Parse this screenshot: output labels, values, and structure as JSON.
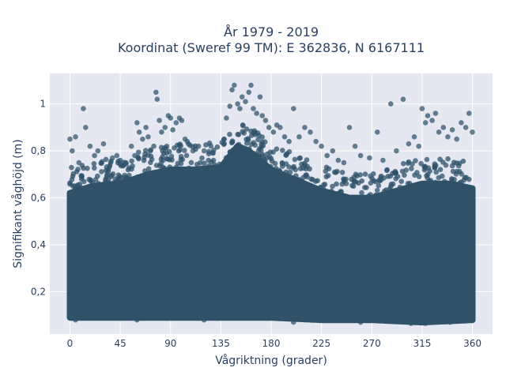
{
  "chart_data": {
    "type": "scatter",
    "title_lines": [
      "År 1979 - 2019",
      "Koordinat (Sweref 99 TM): E 362836, N 6167111"
    ],
    "xlabel": "Vågriktning (grader)",
    "ylabel": "Signifikant våghöjd (m)",
    "xlim": [
      -18,
      378
    ],
    "ylim": [
      0.02,
      1.13
    ],
    "xticks": [
      0,
      45,
      90,
      135,
      180,
      225,
      270,
      315,
      360
    ],
    "xtick_labels": [
      "0",
      "45",
      "90",
      "135",
      "180",
      "225",
      "270",
      "315",
      "360"
    ],
    "yticks": [
      0.2,
      0.4,
      0.6,
      0.8,
      1.0
    ],
    "ytick_labels": [
      "0,2",
      "0,4",
      "0,6",
      "0,8",
      "1"
    ],
    "grid": true,
    "background": "#e5e8f1",
    "marker_color": "#2f5269",
    "band_floor": [
      [
        0,
        0.09
      ],
      [
        45,
        0.09
      ],
      [
        90,
        0.09
      ],
      [
        135,
        0.09
      ],
      [
        180,
        0.09
      ],
      [
        225,
        0.08
      ],
      [
        270,
        0.08
      ],
      [
        315,
        0.07
      ],
      [
        360,
        0.08
      ]
    ],
    "band_ceiling": [
      [
        0,
        0.62
      ],
      [
        20,
        0.65
      ],
      [
        45,
        0.66
      ],
      [
        70,
        0.7
      ],
      [
        90,
        0.72
      ],
      [
        110,
        0.72
      ],
      [
        135,
        0.73
      ],
      [
        150,
        0.82
      ],
      [
        160,
        0.8
      ],
      [
        180,
        0.72
      ],
      [
        200,
        0.68
      ],
      [
        225,
        0.63
      ],
      [
        250,
        0.6
      ],
      [
        270,
        0.6
      ],
      [
        300,
        0.64
      ],
      [
        315,
        0.66
      ],
      [
        340,
        0.66
      ],
      [
        360,
        0.64
      ]
    ],
    "outliers": [
      [
        0,
        0.85
      ],
      [
        2,
        0.8
      ],
      [
        5,
        0.86
      ],
      [
        8,
        0.75
      ],
      [
        12,
        0.98
      ],
      [
        14,
        0.9
      ],
      [
        18,
        0.82
      ],
      [
        22,
        0.78
      ],
      [
        25,
        0.8
      ],
      [
        30,
        0.83
      ],
      [
        38,
        0.77
      ],
      [
        42,
        0.78
      ],
      [
        45,
        0.76
      ],
      [
        50,
        0.75
      ],
      [
        55,
        0.82
      ],
      [
        58,
        0.78
      ],
      [
        60,
        0.92
      ],
      [
        62,
        0.88
      ],
      [
        65,
        0.85
      ],
      [
        68,
        0.9
      ],
      [
        70,
        0.86
      ],
      [
        72,
        0.8
      ],
      [
        75,
        0.82
      ],
      [
        77,
        1.05
      ],
      [
        78,
        1.02
      ],
      [
        80,
        0.93
      ],
      [
        82,
        0.88
      ],
      [
        85,
        0.9
      ],
      [
        88,
        0.95
      ],
      [
        90,
        0.94
      ],
      [
        92,
        0.89
      ],
      [
        95,
        0.92
      ],
      [
        98,
        0.94
      ],
      [
        100,
        0.93
      ],
      [
        103,
        0.85
      ],
      [
        105,
        0.84
      ],
      [
        110,
        0.8
      ],
      [
        115,
        0.82
      ],
      [
        120,
        0.8
      ],
      [
        128,
        0.79
      ],
      [
        138,
        0.85
      ],
      [
        140,
        0.94
      ],
      [
        143,
        0.99
      ],
      [
        145,
        1.06
      ],
      [
        147,
        1.08
      ],
      [
        150,
        1.0
      ],
      [
        152,
        0.98
      ],
      [
        154,
        1.03
      ],
      [
        157,
        1.01
      ],
      [
        160,
        1.05
      ],
      [
        162,
        1.08
      ],
      [
        164,
        0.98
      ],
      [
        167,
        0.96
      ],
      [
        170,
        1.03
      ],
      [
        172,
        0.95
      ],
      [
        175,
        0.93
      ],
      [
        178,
        0.9
      ],
      [
        182,
        0.88
      ],
      [
        185,
        0.91
      ],
      [
        188,
        0.9
      ],
      [
        192,
        0.86
      ],
      [
        196,
        0.84
      ],
      [
        200,
        0.98
      ],
      [
        205,
        0.86
      ],
      [
        210,
        0.9
      ],
      [
        215,
        0.88
      ],
      [
        220,
        0.84
      ],
      [
        225,
        0.82
      ],
      [
        230,
        0.78
      ],
      [
        235,
        0.8
      ],
      [
        240,
        0.76
      ],
      [
        245,
        0.75
      ],
      [
        250,
        0.9
      ],
      [
        255,
        0.82
      ],
      [
        260,
        0.78
      ],
      [
        268,
        0.77
      ],
      [
        275,
        0.88
      ],
      [
        280,
        0.76
      ],
      [
        287,
        1.0
      ],
      [
        292,
        0.8
      ],
      [
        298,
        1.02
      ],
      [
        303,
        0.83
      ],
      [
        308,
        0.86
      ],
      [
        312,
        0.82
      ],
      [
        315,
        0.98
      ],
      [
        318,
        0.92
      ],
      [
        320,
        0.95
      ],
      [
        324,
        0.93
      ],
      [
        327,
        0.96
      ],
      [
        330,
        0.88
      ],
      [
        334,
        0.9
      ],
      [
        338,
        0.86
      ],
      [
        342,
        0.89
      ],
      [
        346,
        0.85
      ],
      [
        350,
        0.92
      ],
      [
        354,
        0.9
      ],
      [
        357,
        0.96
      ],
      [
        360,
        0.88
      ]
    ],
    "low_outliers": [
      [
        5,
        0.08
      ],
      [
        60,
        0.08
      ],
      [
        120,
        0.08
      ],
      [
        200,
        0.07
      ],
      [
        260,
        0.07
      ],
      [
        305,
        0.065
      ],
      [
        318,
        0.065
      ],
      [
        340,
        0.07
      ]
    ]
  }
}
